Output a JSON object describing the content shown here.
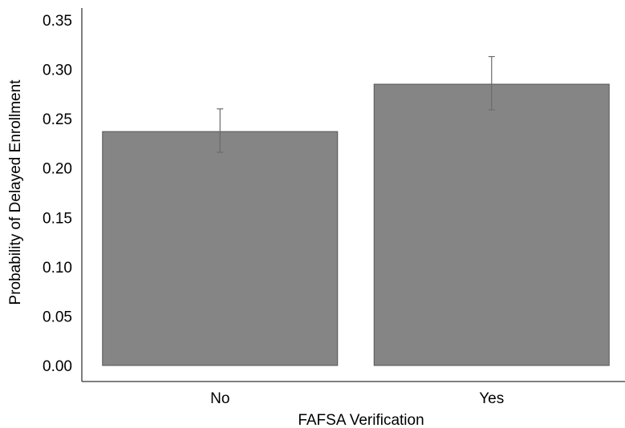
{
  "chart_data": {
    "type": "bar",
    "title": "",
    "xlabel": "FAFSA Verification",
    "ylabel": "Probability of Delayed Enrollment",
    "categories": [
      "No",
      "Yes"
    ],
    "values": [
      0.237,
      0.285
    ],
    "error_low": [
      0.216,
      0.259
    ],
    "error_high": [
      0.26,
      0.313
    ],
    "ylim": [
      0,
      0.35
    ],
    "yticks": [
      0.0,
      0.05,
      0.1,
      0.15,
      0.2,
      0.25,
      0.3,
      0.35
    ],
    "ytick_labels": [
      "0.00",
      "0.05",
      "0.10",
      "0.15",
      "0.20",
      "0.25",
      "0.30",
      "0.35"
    ],
    "grid": false,
    "bar_color": "#858585",
    "error_bar_color": "#6b6b6b"
  }
}
